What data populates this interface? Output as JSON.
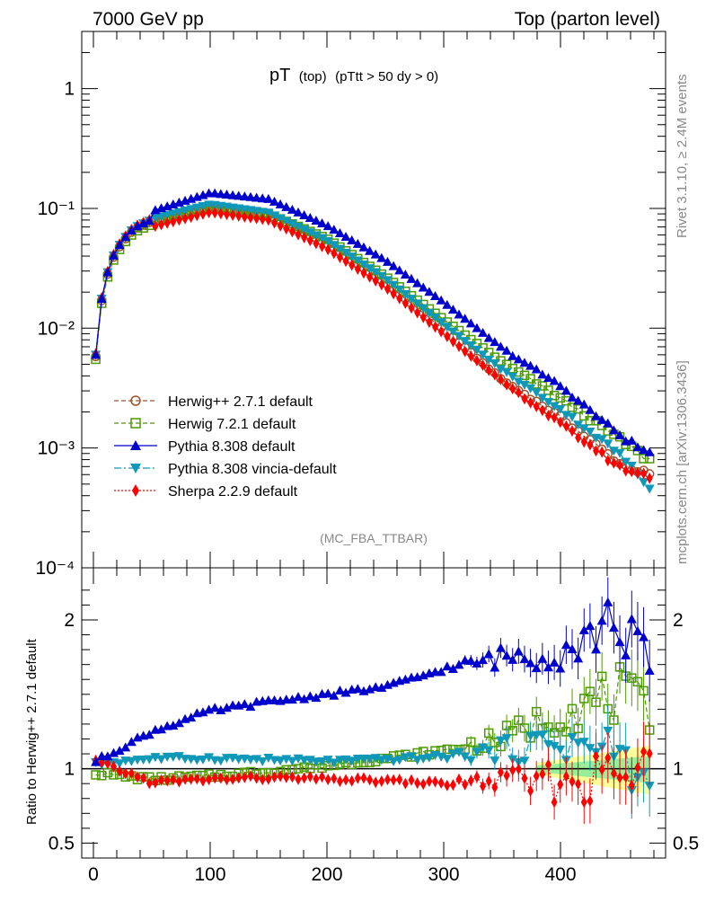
{
  "header": {
    "left": "7000 GeV pp",
    "right": "Top (parton level)"
  },
  "plot_title": {
    "main": "pT",
    "sub1": "(top)",
    "sub2": "(pTtt > 50 dy > 0)"
  },
  "side_labels": {
    "rivet": "Rivet 3.1.10, ≥ 2.4M events",
    "mcplots": "mcplots.cern.ch [arXiv:1306.3436]"
  },
  "watermark": "(MC_FBA_TTBAR)",
  "colors": {
    "herwigpp": "#a0522d",
    "herwig7": "#4c9a00",
    "pythia": "#0000cc",
    "vincia": "#1098b8",
    "sherpa": "#ff0000",
    "band_yellow": "#ffff99",
    "band_green": "#99ee99"
  },
  "chart_data": [
    {
      "type": "line",
      "panel": "main",
      "xlim": [
        -10,
        490
      ],
      "ylim": [
        0.0001,
        3
      ],
      "yscale": "log",
      "xlabel": "",
      "ylabel": "",
      "ytick_labels": [
        "10⁻⁴",
        "10⁻³",
        "10⁻²",
        "10⁻¹",
        "1"
      ],
      "legend_position": "lower-left",
      "series": [
        {
          "name": "Herwig++ 2.7.1 default",
          "style": "dashed",
          "marker": "open-circle",
          "color": "#a0522d",
          "x": [
            2,
            50,
            100,
            150,
            200,
            250,
            300,
            350,
            400,
            450,
            475
          ],
          "values": [
            0.0058,
            0.078,
            0.102,
            0.087,
            0.051,
            0.024,
            0.0098,
            0.0037,
            0.0018,
            0.00075,
            0.0006
          ]
        },
        {
          "name": "Herwig 7.2.1 default",
          "style": "dashed",
          "marker": "open-square",
          "color": "#4c9a00",
          "x": [
            2,
            50,
            100,
            150,
            200,
            250,
            300,
            350,
            400,
            450,
            475
          ],
          "values": [
            0.0055,
            0.078,
            0.103,
            0.09,
            0.056,
            0.027,
            0.0118,
            0.0052,
            0.0026,
            0.0012,
            0.0008
          ]
        },
        {
          "name": "Pythia 8.308 default",
          "style": "solid",
          "marker": "filled-triangle-up",
          "color": "#0000cc",
          "x": [
            2,
            50,
            100,
            150,
            200,
            250,
            300,
            350,
            400,
            450,
            475
          ],
          "values": [
            0.006,
            0.095,
            0.135,
            0.12,
            0.072,
            0.037,
            0.0165,
            0.0068,
            0.0033,
            0.0013,
            0.0009
          ]
        },
        {
          "name": "Pythia 8.308 vincia-default",
          "style": "dashdot",
          "marker": "filled-triangle-down",
          "color": "#1098b8",
          "x": [
            2,
            50,
            100,
            150,
            200,
            250,
            300,
            350,
            400,
            450,
            475
          ],
          "values": [
            0.006,
            0.082,
            0.108,
            0.092,
            0.054,
            0.026,
            0.0108,
            0.0045,
            0.0021,
            0.0009,
            0.00048
          ]
        },
        {
          "name": "Sherpa 2.2.9 default",
          "style": "dotted",
          "marker": "filled-diamond",
          "color": "#ff0000",
          "x": [
            2,
            50,
            100,
            150,
            200,
            250,
            300,
            350,
            400,
            450,
            475
          ],
          "values": [
            0.0061,
            0.07,
            0.093,
            0.08,
            0.046,
            0.022,
            0.009,
            0.0036,
            0.0016,
            0.0007,
            0.00058
          ]
        }
      ]
    },
    {
      "type": "line",
      "panel": "ratio",
      "xlim": [
        -10,
        490
      ],
      "ylim": [
        0.4,
        2.35
      ],
      "ylabel": "Ratio to Herwig++ 2.7.1 default",
      "xtick_labels": [
        "0",
        "100",
        "200",
        "300",
        "400"
      ],
      "ytick_labels": [
        "0.5",
        "1",
        "2"
      ],
      "series": [
        {
          "name": "Herwig 7.2.1 default",
          "color": "#4c9a00",
          "x": [
            2,
            50,
            100,
            150,
            200,
            250,
            300,
            350,
            400,
            450,
            475
          ],
          "values": [
            0.97,
            0.93,
            0.95,
            0.98,
            1.02,
            1.07,
            1.12,
            1.2,
            1.38,
            1.5,
            1.3
          ]
        },
        {
          "name": "Pythia 8.308 default",
          "color": "#0000cc",
          "x": [
            2,
            50,
            100,
            150,
            200,
            250,
            300,
            350,
            400,
            450,
            475
          ],
          "values": [
            1.05,
            1.25,
            1.39,
            1.45,
            1.5,
            1.55,
            1.67,
            1.75,
            1.8,
            2.0,
            1.65
          ]
        },
        {
          "name": "Pythia 8.308 vincia-default",
          "color": "#1098b8",
          "x": [
            2,
            50,
            100,
            150,
            200,
            250,
            300,
            350,
            400,
            450,
            475
          ],
          "values": [
            1.03,
            1.07,
            1.07,
            1.06,
            1.05,
            1.06,
            1.08,
            1.12,
            1.18,
            1.1,
            0.83
          ]
        },
        {
          "name": "Sherpa 2.2.9 default",
          "color": "#ff0000",
          "x": [
            2,
            50,
            100,
            150,
            200,
            250,
            300,
            350,
            400,
            450,
            475
          ],
          "values": [
            1.05,
            0.91,
            0.93,
            0.94,
            0.93,
            0.92,
            0.9,
            0.92,
            0.9,
            0.95,
            0.97
          ]
        }
      ]
    }
  ]
}
